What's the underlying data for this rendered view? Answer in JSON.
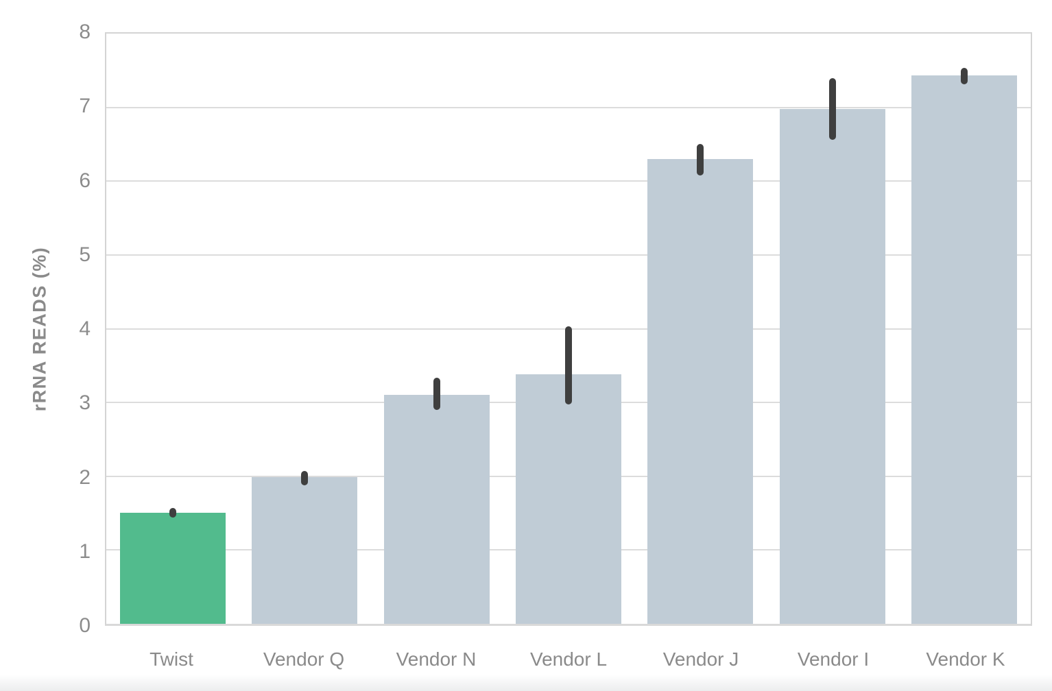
{
  "chart_data": {
    "type": "bar",
    "title": "",
    "xlabel": "",
    "ylabel": "rRNA READS (%)",
    "categories": [
      "Twist",
      "Vendor Q",
      "Vendor N",
      "Vendor L",
      "Vendor J",
      "Vendor I",
      "Vendor K"
    ],
    "values": [
      1.51,
      1.99,
      3.1,
      3.38,
      6.3,
      6.98,
      7.43
    ],
    "error_low": [
      1.44,
      1.88,
      2.9,
      2.97,
      6.08,
      6.56,
      7.31
    ],
    "error_high": [
      1.57,
      2.07,
      3.34,
      4.03,
      6.5,
      7.4,
      7.54
    ],
    "ylim": [
      0,
      8
    ],
    "yticks": [
      0,
      1,
      2,
      3,
      4,
      5,
      6,
      7,
      8
    ],
    "grid": true,
    "legend": null,
    "highlight_index": 0,
    "colors": {
      "highlight_bar": "#52bb8d",
      "default_bar": "#c0ccd6",
      "error_bar": "#3f3f3f",
      "gridline": "#dcdcdc",
      "axis_border": "#d4d4d4",
      "baseline": "#d9d9d9",
      "tick_label": "#8c8c8c",
      "axis_title": "#8a8a8a"
    }
  }
}
